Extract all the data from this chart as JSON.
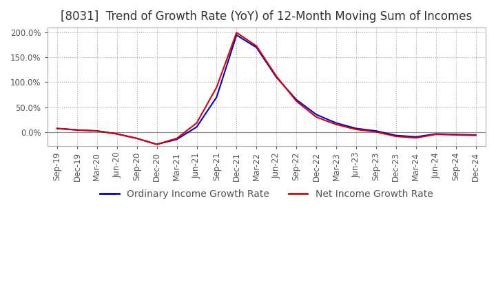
{
  "title": "[8031]  Trend of Growth Rate (YoY) of 12-Month Moving Sum of Incomes",
  "title_fontsize": 12,
  "tick_fontsize": 8.5,
  "legend_fontsize": 10,
  "background_color": "#ffffff",
  "plot_bg_color": "#ffffff",
  "grid_color": "#aaaaaa",
  "ordinary_color": "#0000cc",
  "net_color": "#dd0000",
  "x_labels": [
    "Sep-19",
    "Dec-19",
    "Mar-20",
    "Jun-20",
    "Sep-20",
    "Dec-20",
    "Mar-21",
    "Jun-21",
    "Sep-21",
    "Dec-21",
    "Mar-22",
    "Jun-22",
    "Sep-22",
    "Dec-22",
    "Mar-23",
    "Jun-23",
    "Sep-23",
    "Dec-23",
    "Mar-24",
    "Jun-24",
    "Sep-24",
    "Dec-24"
  ],
  "ordinary_income_growth": [
    0.07,
    0.04,
    0.02,
    -0.04,
    -0.13,
    -0.25,
    -0.15,
    0.1,
    0.7,
    1.95,
    1.7,
    1.1,
    0.65,
    0.35,
    0.18,
    0.07,
    0.02,
    -0.07,
    -0.1,
    -0.04,
    -0.05,
    -0.06
  ],
  "net_income_growth": [
    0.07,
    0.04,
    0.02,
    -0.04,
    -0.13,
    -0.25,
    -0.13,
    0.18,
    0.9,
    2.0,
    1.73,
    1.12,
    0.62,
    0.3,
    0.15,
    0.05,
    0.0,
    -0.09,
    -0.12,
    -0.05,
    -0.06,
    -0.07
  ],
  "ylim_min": -0.28,
  "ylim_max": 2.1
}
